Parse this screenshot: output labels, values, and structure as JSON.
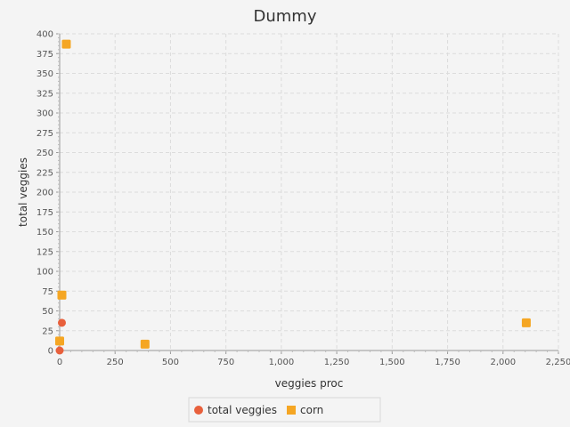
{
  "chart_data": {
    "type": "scatter",
    "title": "Dummy",
    "xlabel": "veggies proc",
    "ylabel": "total veggies",
    "xlim": [
      0,
      2250
    ],
    "ylim": [
      0,
      400
    ],
    "x_ticks": [
      "0",
      "250",
      "500",
      "750",
      "1,000",
      "1,250",
      "1,500",
      "1,750",
      "2,000",
      "2,250"
    ],
    "y_ticks": [
      "0",
      "25",
      "50",
      "75",
      "100",
      "125",
      "150",
      "175",
      "200",
      "225",
      "250",
      "275",
      "300",
      "325",
      "350",
      "375",
      "400"
    ],
    "grid": true,
    "legend_position": "bottom",
    "series": [
      {
        "name": "total veggies",
        "marker": "circle",
        "color": "#e8603c",
        "points": [
          [
            10,
            35
          ],
          [
            0,
            0
          ]
        ]
      },
      {
        "name": "corn",
        "marker": "square",
        "color": "#f5a623",
        "points": [
          [
            30,
            387
          ],
          [
            10,
            70
          ],
          [
            0,
            12
          ],
          [
            385,
            8
          ],
          [
            2105,
            35
          ]
        ]
      }
    ]
  }
}
